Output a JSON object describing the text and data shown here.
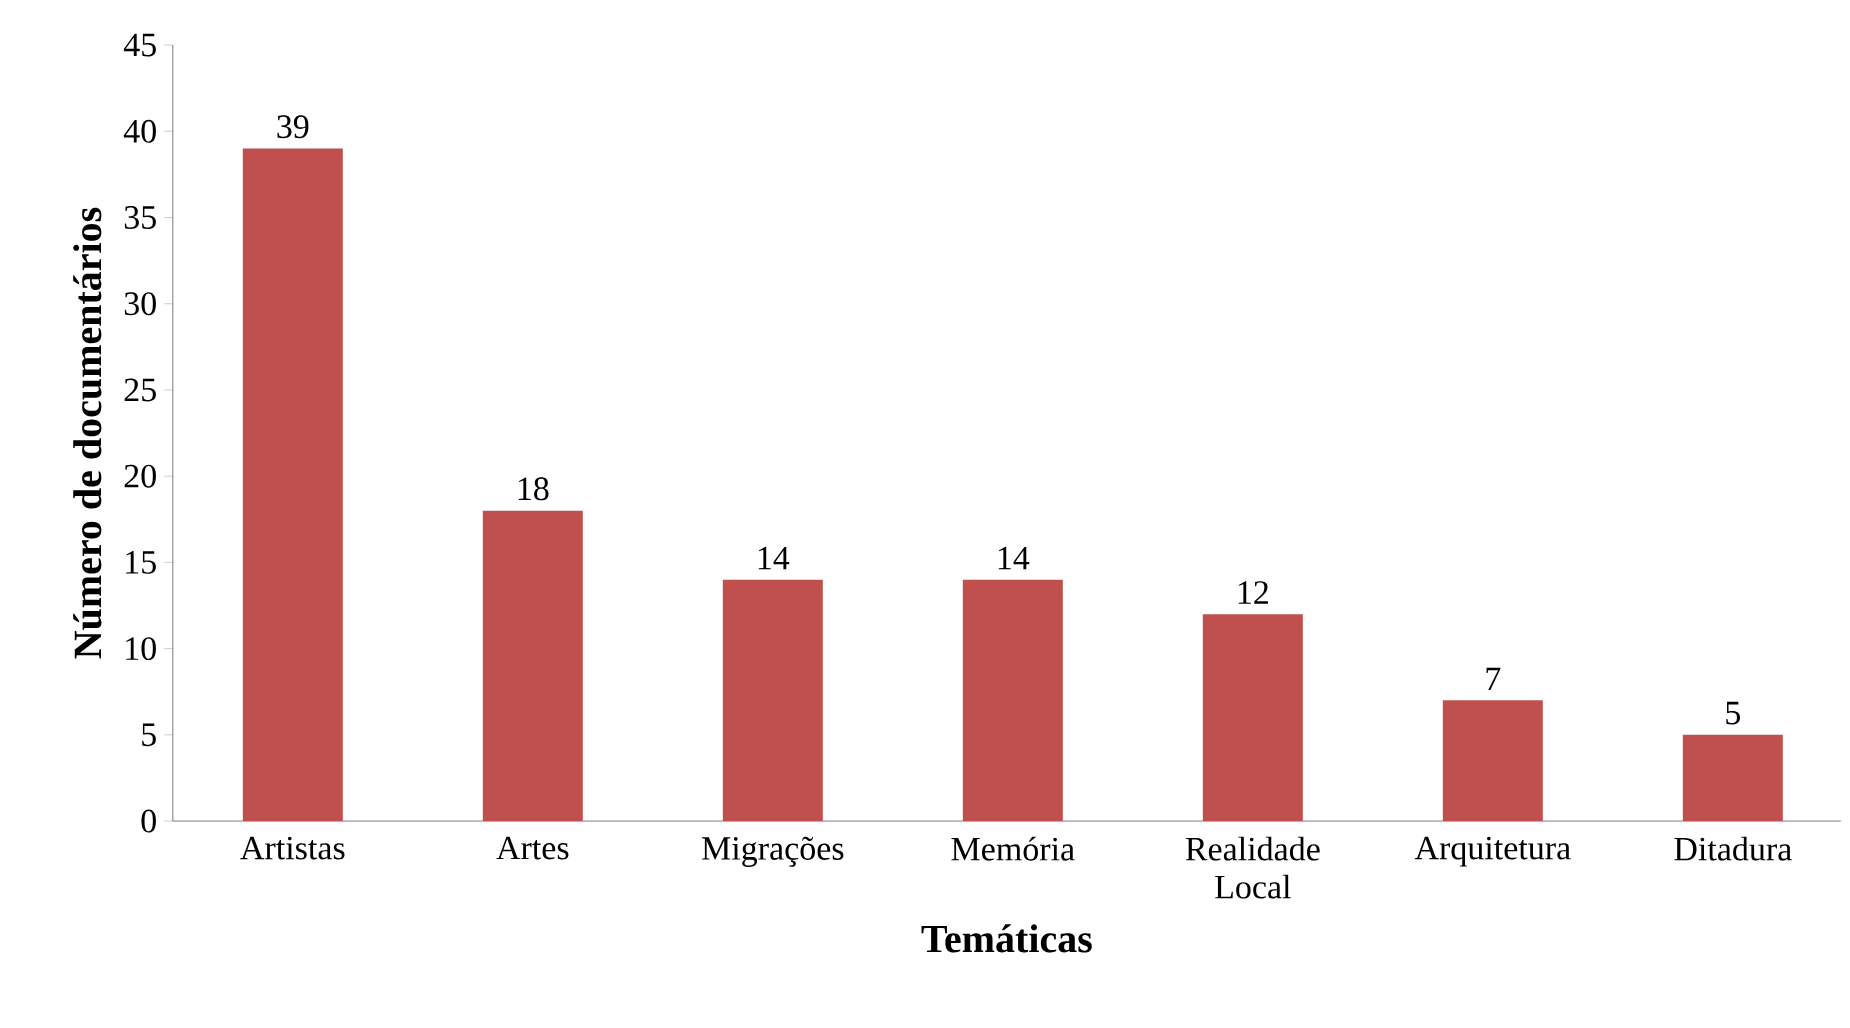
{
  "chart_data": {
    "type": "bar",
    "categories": [
      "Artistas",
      "Artes",
      "Migrações",
      "Memória",
      "Realidade Local",
      "Arquitetura",
      "Ditadura"
    ],
    "values": [
      39,
      18,
      14,
      14,
      12,
      7,
      5
    ],
    "color": "#c0504d",
    "xlabel": "Temáticas",
    "ylabel": "Número de documentários",
    "ylim": [
      0,
      45
    ],
    "yticks": [
      0,
      5,
      10,
      15,
      20,
      25,
      30,
      35,
      40,
      45
    ],
    "data_labels": true
  }
}
